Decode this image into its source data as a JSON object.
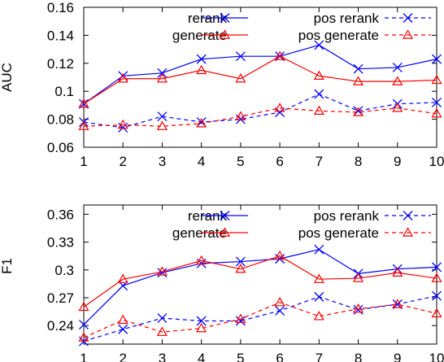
{
  "chart_data": [
    {
      "type": "line",
      "ylabel": "AUC",
      "xlabel": "",
      "x": [
        1,
        2,
        3,
        4,
        5,
        6,
        7,
        8,
        9,
        10
      ],
      "xlim": [
        1,
        10
      ],
      "ylim": [
        0.06,
        0.16
      ],
      "xticks": [
        "1",
        "2",
        "3",
        "4",
        "5",
        "6",
        "7",
        "8",
        "9",
        "10"
      ],
      "yticks": [
        0.06,
        0.08,
        0.1,
        0.12,
        0.14,
        0.16
      ],
      "ytick_labels": [
        "0.06",
        "0.08",
        "0.1",
        "0.12",
        "0.14",
        "0.16"
      ],
      "grid": false,
      "legend": "top, two columns",
      "series": [
        {
          "name": "rerank",
          "values": [
            0.091,
            0.111,
            0.113,
            0.123,
            0.125,
            0.125,
            0.133,
            0.116,
            0.117,
            0.123
          ],
          "color": "#0000ff",
          "marker": "x",
          "dash": "solid"
        },
        {
          "name": "generate",
          "values": [
            0.091,
            0.109,
            0.109,
            0.115,
            0.109,
            0.125,
            0.111,
            0.107,
            0.107,
            0.108
          ],
          "color": "#ff0000",
          "marker": "triangle",
          "dash": "solid"
        },
        {
          "name": "pos rerank",
          "values": [
            0.078,
            0.074,
            0.082,
            0.078,
            0.08,
            0.085,
            0.098,
            0.086,
            0.091,
            0.092
          ],
          "color": "#0000ff",
          "marker": "x",
          "dash": "dashed"
        },
        {
          "name": "pos generate",
          "values": [
            0.075,
            0.076,
            0.075,
            0.077,
            0.082,
            0.088,
            0.086,
            0.085,
            0.088,
            0.084
          ],
          "color": "#ff0000",
          "marker": "triangle",
          "dash": "dashed"
        }
      ]
    },
    {
      "type": "line",
      "ylabel": "F1",
      "xlabel": "",
      "x": [
        1,
        2,
        3,
        4,
        5,
        6,
        7,
        8,
        9,
        10
      ],
      "xlim": [
        1,
        10
      ],
      "ylim": [
        0.22,
        0.37
      ],
      "xticks": [
        "1",
        "2",
        "3",
        "4",
        "5",
        "6",
        "7",
        "8",
        "9",
        "10"
      ],
      "yticks": [
        0.24,
        0.27,
        0.3,
        0.33,
        0.36
      ],
      "ytick_labels": [
        "0.24",
        "0.27",
        "0.3",
        "0.33",
        "0.36"
      ],
      "grid": false,
      "legend": "top, two columns",
      "series": [
        {
          "name": "rerank",
          "values": [
            0.241,
            0.283,
            0.297,
            0.307,
            0.309,
            0.312,
            0.322,
            0.296,
            0.301,
            0.303
          ],
          "color": "#0000ff",
          "marker": "x",
          "dash": "solid"
        },
        {
          "name": "generate",
          "values": [
            0.26,
            0.29,
            0.298,
            0.31,
            0.301,
            0.315,
            0.29,
            0.291,
            0.297,
            0.291
          ],
          "color": "#ff0000",
          "marker": "triangle",
          "dash": "solid"
        },
        {
          "name": "pos rerank",
          "values": [
            0.223,
            0.236,
            0.248,
            0.245,
            0.245,
            0.256,
            0.271,
            0.257,
            0.263,
            0.272
          ],
          "color": "#0000ff",
          "marker": "x",
          "dash": "dashed"
        },
        {
          "name": "pos generate",
          "values": [
            0.227,
            0.246,
            0.233,
            0.237,
            0.247,
            0.265,
            0.25,
            0.258,
            0.263,
            0.253
          ],
          "color": "#ff0000",
          "marker": "triangle",
          "dash": "dashed"
        }
      ]
    }
  ]
}
